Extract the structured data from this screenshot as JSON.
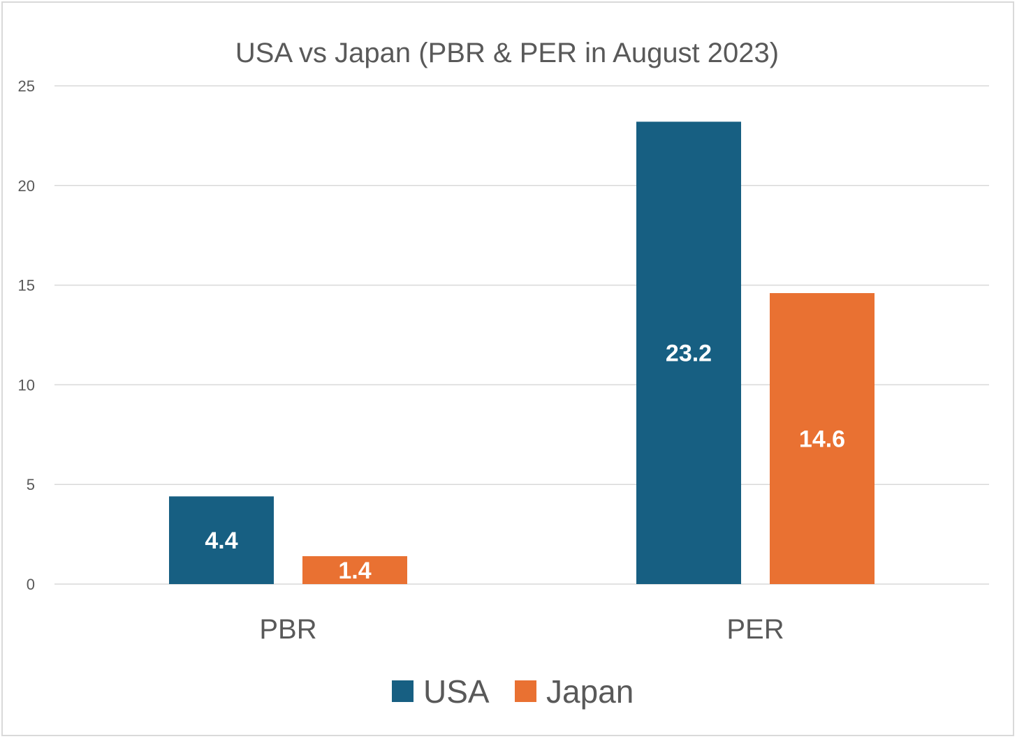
{
  "chart_data": {
    "type": "bar",
    "title": "USA vs Japan (PBR & PER in August 2023)",
    "categories": [
      "PBR",
      "PER"
    ],
    "series": [
      {
        "name": "USA",
        "values": [
          4.4,
          23.2
        ],
        "labels": [
          "4.4",
          "23.2"
        ],
        "color": "#175f82"
      },
      {
        "name": "Japan",
        "values": [
          1.4,
          14.6
        ],
        "labels": [
          "1.4",
          "14.6"
        ],
        "color": "#e97132"
      }
    ],
    "xlabel": "",
    "ylabel": "",
    "ylim": [
      0,
      25
    ],
    "yticks": [
      "0",
      "5",
      "10",
      "15",
      "20",
      "25"
    ],
    "grid": true,
    "legend": "bottom-center"
  }
}
